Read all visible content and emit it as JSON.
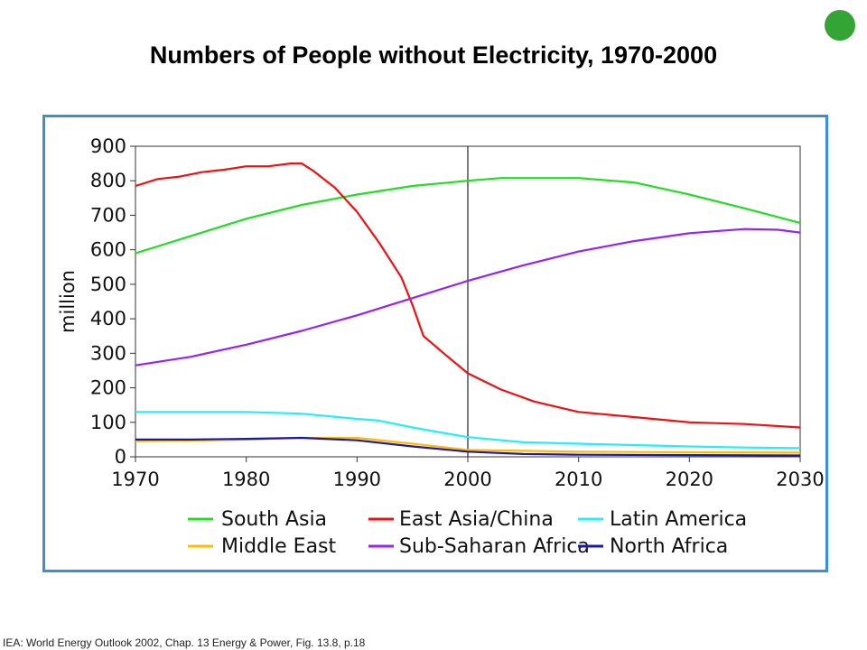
{
  "slide": {
    "title": "Numbers of People without Electricity, 1970-2000",
    "source": "IEA: World Energy Outlook 2002, Chap. 13 Energy & Power, Fig. 13.8, p.18",
    "status_dot_color": "#34a535",
    "frame_color": "#3a8fd6"
  },
  "chart_data": {
    "type": "line",
    "ylabel": "million",
    "xlim": [
      1970,
      2030
    ],
    "ylim": [
      0,
      900
    ],
    "x_ticks": [
      1970,
      1980,
      1990,
      2000,
      2010,
      2020,
      2030
    ],
    "y_ticks": [
      0,
      100,
      200,
      300,
      400,
      500,
      600,
      700,
      800,
      900
    ],
    "grid": "none",
    "reference_line_x": 2000,
    "legend_position": "bottom",
    "series": [
      {
        "name": "South Asia",
        "color": "#22dd22",
        "points": [
          [
            1970,
            590
          ],
          [
            1975,
            640
          ],
          [
            1980,
            690
          ],
          [
            1985,
            730
          ],
          [
            1990,
            760
          ],
          [
            1995,
            785
          ],
          [
            2000,
            800
          ],
          [
            2003,
            808
          ],
          [
            2010,
            808
          ],
          [
            2015,
            795
          ],
          [
            2020,
            760
          ],
          [
            2025,
            720
          ],
          [
            2030,
            678
          ]
        ]
      },
      {
        "name": "East Asia/China",
        "color": "#ee1111",
        "points": [
          [
            1970,
            785
          ],
          [
            1972,
            805
          ],
          [
            1974,
            812
          ],
          [
            1976,
            825
          ],
          [
            1978,
            832
          ],
          [
            1980,
            842
          ],
          [
            1982,
            842
          ],
          [
            1984,
            850
          ],
          [
            1985,
            850
          ],
          [
            1986,
            830
          ],
          [
            1988,
            780
          ],
          [
            1990,
            710
          ],
          [
            1992,
            620
          ],
          [
            1994,
            520
          ],
          [
            1995,
            440
          ],
          [
            1996,
            350
          ],
          [
            1998,
            295
          ],
          [
            2000,
            242
          ],
          [
            2003,
            195
          ],
          [
            2006,
            160
          ],
          [
            2010,
            130
          ],
          [
            2015,
            115
          ],
          [
            2020,
            100
          ],
          [
            2025,
            95
          ],
          [
            2030,
            85
          ]
        ]
      },
      {
        "name": "Latin America",
        "color": "#22eeff",
        "points": [
          [
            1970,
            130
          ],
          [
            1975,
            130
          ],
          [
            1980,
            130
          ],
          [
            1985,
            125
          ],
          [
            1990,
            110
          ],
          [
            1992,
            105
          ],
          [
            1995,
            85
          ],
          [
            1998,
            68
          ],
          [
            2000,
            57
          ],
          [
            2005,
            42
          ],
          [
            2010,
            38
          ],
          [
            2015,
            34
          ],
          [
            2020,
            30
          ],
          [
            2025,
            27
          ],
          [
            2030,
            25
          ]
        ]
      },
      {
        "name": "Middle East",
        "color": "#ffbb00",
        "points": [
          [
            1970,
            45
          ],
          [
            1975,
            47
          ],
          [
            1980,
            50
          ],
          [
            1985,
            55
          ],
          [
            1990,
            55
          ],
          [
            1995,
            38
          ],
          [
            2000,
            20
          ],
          [
            2010,
            15
          ],
          [
            2020,
            13
          ],
          [
            2030,
            12
          ]
        ]
      },
      {
        "name": "Sub-Saharan Africa",
        "color": "#9922ee",
        "points": [
          [
            1970,
            265
          ],
          [
            1975,
            290
          ],
          [
            1980,
            325
          ],
          [
            1985,
            365
          ],
          [
            1990,
            410
          ],
          [
            1995,
            460
          ],
          [
            2000,
            510
          ],
          [
            2005,
            555
          ],
          [
            2010,
            595
          ],
          [
            2015,
            625
          ],
          [
            2020,
            648
          ],
          [
            2025,
            660
          ],
          [
            2028,
            658
          ],
          [
            2030,
            650
          ]
        ]
      },
      {
        "name": "North Africa",
        "color": "#1a1aaa",
        "points": [
          [
            1970,
            50
          ],
          [
            1975,
            50
          ],
          [
            1980,
            52
          ],
          [
            1985,
            55
          ],
          [
            1990,
            48
          ],
          [
            1995,
            30
          ],
          [
            2000,
            15
          ],
          [
            2005,
            8
          ],
          [
            2010,
            6
          ],
          [
            2020,
            5
          ],
          [
            2030,
            4
          ]
        ]
      }
    ]
  }
}
